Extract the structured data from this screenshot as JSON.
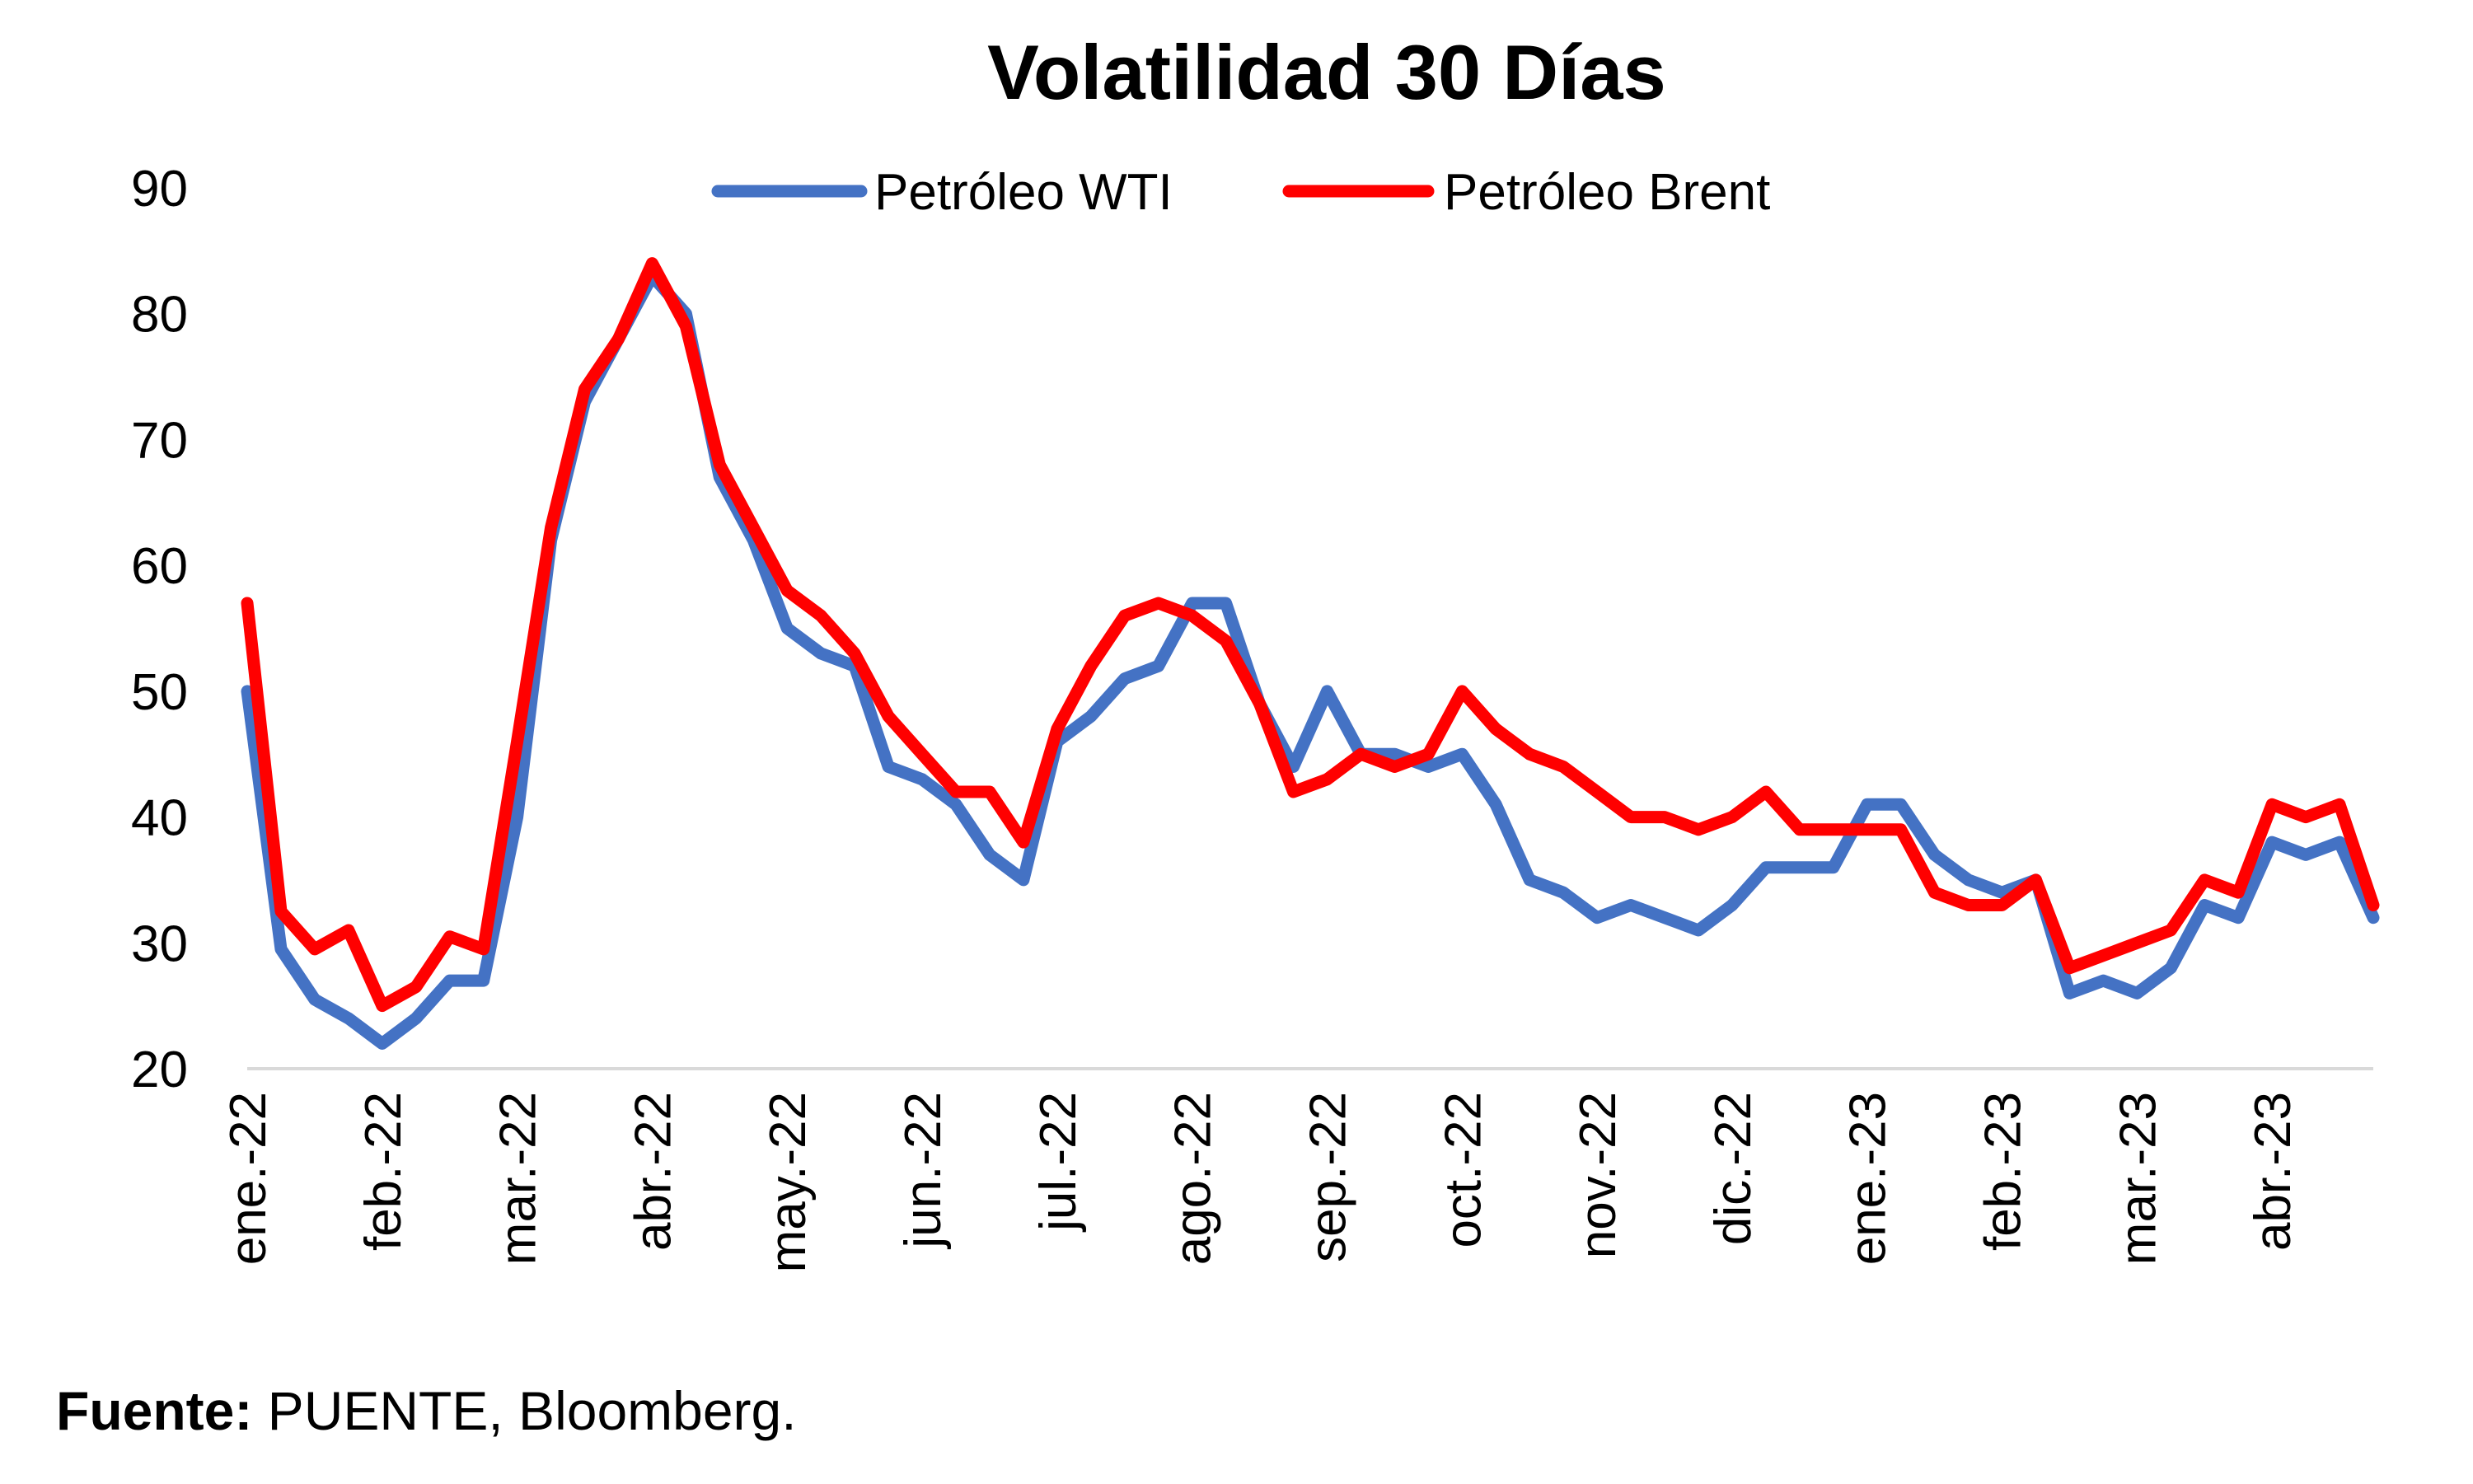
{
  "chart_data": {
    "type": "line",
    "title": "Volatilidad 30 Días",
    "categories": [
      "ene.-22",
      null,
      null,
      null,
      "feb.-22",
      null,
      null,
      null,
      "mar.-22",
      null,
      null,
      null,
      "abr.-22",
      null,
      null,
      null,
      "may.-22",
      null,
      null,
      null,
      "jun.-22",
      null,
      null,
      null,
      "jul.-22",
      null,
      null,
      null,
      "ago.-22",
      null,
      null,
      null,
      "sep.-22",
      null,
      null,
      null,
      "oct.-22",
      null,
      null,
      null,
      "nov.-22",
      null,
      null,
      null,
      "dic.-22",
      null,
      null,
      null,
      "ene.-23",
      null,
      null,
      null,
      "feb.-23",
      null,
      null,
      null,
      "mar.-23",
      null,
      null,
      null,
      "abr.-23",
      null,
      null,
      null
    ],
    "series": [
      {
        "name": "Petróleo WTI",
        "color": "#4472c4",
        "values": [
          50,
          29.5,
          25.5,
          24,
          22,
          24,
          27,
          27,
          40,
          62,
          73,
          78,
          83,
          80,
          67,
          62,
          55,
          53,
          52,
          44,
          43,
          41,
          37,
          35,
          46,
          48,
          51,
          52,
          57,
          57,
          49,
          44,
          50,
          45,
          45,
          44,
          45,
          41,
          35,
          34,
          32,
          33,
          32,
          31,
          33,
          36,
          36,
          36,
          41,
          41,
          37,
          35,
          34,
          35,
          26,
          27,
          26,
          28,
          33,
          32,
          38,
          37,
          38,
          32
        ]
      },
      {
        "name": "Petróleo Brent",
        "color": "#ff0000",
        "values": [
          57,
          32.5,
          29.5,
          31,
          25,
          26.5,
          30.5,
          29.5,
          46,
          63,
          74,
          78,
          84,
          79,
          68,
          63,
          58,
          56,
          53,
          48,
          45,
          42,
          42,
          38,
          47,
          52,
          56,
          57,
          56,
          54,
          49,
          42,
          43,
          45,
          44,
          45,
          50,
          47,
          45,
          44,
          42,
          40,
          40,
          39,
          40,
          42,
          39,
          39,
          39,
          39,
          34,
          33,
          33,
          35,
          28,
          29,
          30,
          31,
          35,
          34,
          41,
          40,
          41,
          33
        ]
      }
    ],
    "ylim": [
      20,
      90
    ],
    "yticks": [
      20,
      30,
      40,
      50,
      60,
      70,
      80,
      90
    ],
    "grid": false,
    "legend": "top",
    "source_label": "Fuente:",
    "source": "PUENTE, Bloomberg."
  }
}
